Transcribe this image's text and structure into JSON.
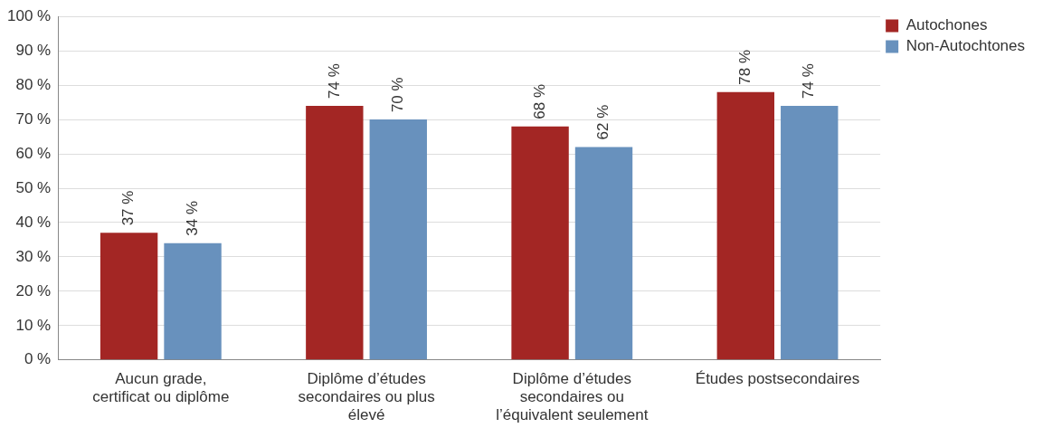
{
  "chart_data": {
    "type": "bar",
    "categories": [
      "Aucun grade, certificat ou diplôme",
      "Diplôme d’études secondaires ou plus élevé",
      "Diplôme d’études secondaires ou l’équivalent seulement",
      "Études postsecondaires"
    ],
    "series": [
      {
        "name": "Autochones",
        "color": "#a32624",
        "values": [
          37,
          74,
          68,
          78
        ],
        "value_labels": [
          "37 %",
          "74 %",
          "68 %",
          "78 %"
        ]
      },
      {
        "name": "Non-Autochtones",
        "color": "#6891bd",
        "values": [
          34,
          70,
          62,
          74
        ],
        "value_labels": [
          "34 %",
          "70 %",
          "62 %",
          "74 %"
        ]
      }
    ],
    "ylim": [
      0,
      100
    ],
    "yticks": [
      {
        "value": 0,
        "label": "0 %"
      },
      {
        "value": 10,
        "label": "10 %"
      },
      {
        "value": 20,
        "label": "20 %"
      },
      {
        "value": 30,
        "label": "30 %"
      },
      {
        "value": 40,
        "label": "40 %"
      },
      {
        "value": 50,
        "label": "50 %"
      },
      {
        "value": 60,
        "label": "60 %"
      },
      {
        "value": 70,
        "label": "70 %"
      },
      {
        "value": 80,
        "label": "80 %"
      },
      {
        "value": 90,
        "label": "90 %"
      },
      {
        "value": 100,
        "label": "100 %"
      }
    ],
    "grid": "y",
    "legend": "top right"
  }
}
